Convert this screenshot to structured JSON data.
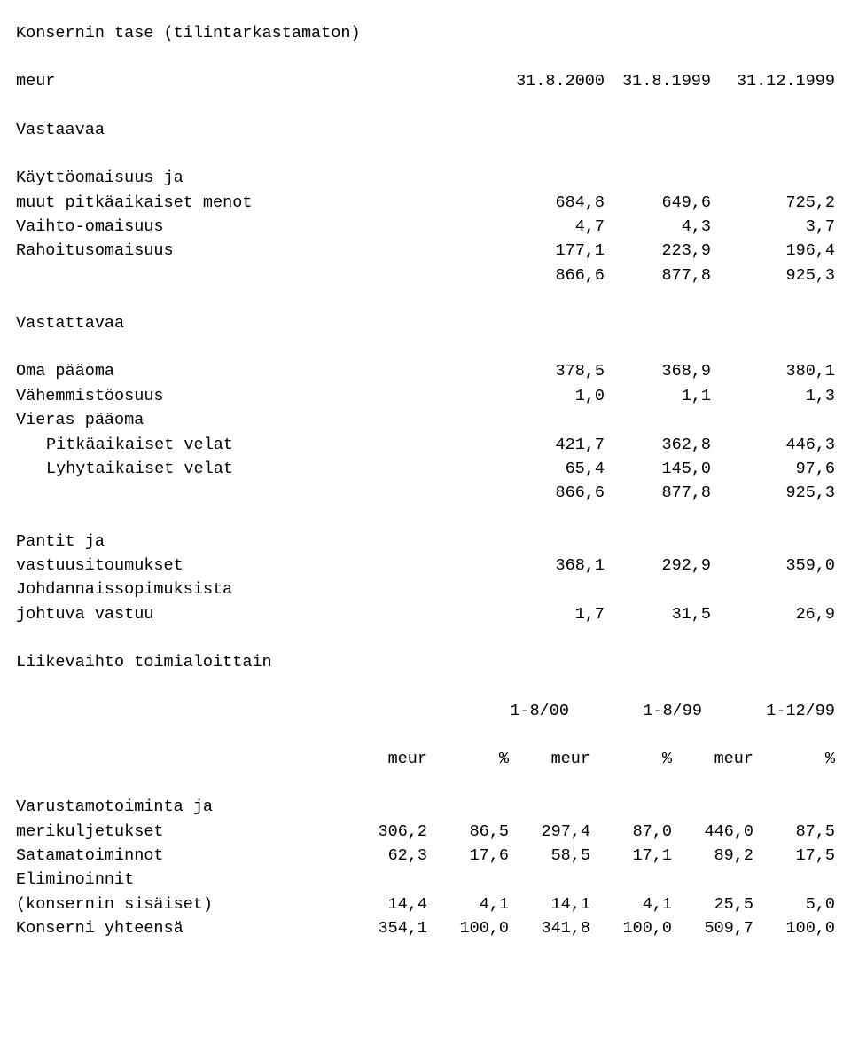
{
  "title": "Konsernin tase (tilintarkastamaton)",
  "header": {
    "label": "meur",
    "cols": [
      "31.8.2000",
      "31.8.1999",
      "31.12.1999"
    ]
  },
  "section1": {
    "heading": "Vastaavaa",
    "rows": [
      {
        "label": "Käyttöomaisuus ja",
        "vals": [
          "",
          "",
          ""
        ]
      },
      {
        "label": "muut pitkäaikaiset menot",
        "vals": [
          "684,8",
          "649,6",
          "725,2"
        ]
      },
      {
        "label": "Vaihto-omaisuus",
        "vals": [
          "4,7",
          "4,3",
          "3,7"
        ]
      },
      {
        "label": "Rahoitusomaisuus",
        "vals": [
          "177,1",
          "223,9",
          "196,4"
        ]
      },
      {
        "label": "",
        "vals": [
          "866,6",
          "877,8",
          "925,3"
        ]
      }
    ]
  },
  "section2": {
    "heading": "Vastattavaa",
    "rows": [
      {
        "label": "Oma pääoma",
        "vals": [
          "378,5",
          "368,9",
          "380,1"
        ]
      },
      {
        "label": "Vähemmistöosuus",
        "vals": [
          "1,0",
          "1,1",
          "1,3"
        ]
      },
      {
        "label": "Vieras pääoma",
        "vals": [
          "",
          "",
          ""
        ]
      },
      {
        "label_indent": true,
        "label": "Pitkäaikaiset velat",
        "vals": [
          "421,7",
          "362,8",
          "446,3"
        ]
      },
      {
        "label_indent": true,
        "label": "Lyhytaikaiset velat",
        "vals": [
          "65,4",
          "145,0",
          "97,6"
        ]
      },
      {
        "label": "",
        "vals": [
          "866,6",
          "877,8",
          "925,3"
        ]
      }
    ]
  },
  "section3": {
    "rows": [
      {
        "label": "Pantit ja",
        "vals": [
          "",
          "",
          ""
        ]
      },
      {
        "label": "vastuusitoumukset",
        "vals": [
          "368,1",
          "292,9",
          "359,0"
        ]
      },
      {
        "label": "Johdannaissopimuksista",
        "vals": [
          "",
          "",
          ""
        ]
      },
      {
        "label": "johtuva vastuu",
        "vals": [
          "1,7",
          "31,5",
          "26,9"
        ]
      }
    ]
  },
  "turnover": {
    "heading": "Liikevaihto toimialoittain",
    "period_cols": [
      "1-8/00",
      "1-8/99",
      "1-12/99"
    ],
    "unit_row": {
      "label": "",
      "cols": [
        "meur",
        "%",
        "meur",
        "%",
        "meur",
        "%"
      ]
    },
    "rows": [
      {
        "label": "Varustamotoiminta ja",
        "vals": [
          "",
          "",
          "",
          "",
          "",
          ""
        ]
      },
      {
        "label": "merikuljetukset",
        "vals": [
          "306,2",
          "86,5",
          "297,4",
          "87,0",
          "446,0",
          "87,5"
        ]
      },
      {
        "label": "Satamatoiminnot",
        "vals": [
          "62,3",
          "17,6",
          "58,5",
          "17,1",
          "89,2",
          "17,5"
        ]
      },
      {
        "label": "Eliminoinnit",
        "vals": [
          "",
          "",
          "",
          "",
          "",
          ""
        ]
      },
      {
        "label": "(konsernin sisäiset)",
        "vals": [
          "14,4",
          "4,1",
          "14,1",
          "4,1",
          "25,5",
          "5,0"
        ]
      },
      {
        "label": "Konserni yhteensä",
        "vals": [
          "354,1",
          "100,0",
          "341,8",
          "100,0",
          "509,7",
          "100,0"
        ]
      }
    ]
  }
}
